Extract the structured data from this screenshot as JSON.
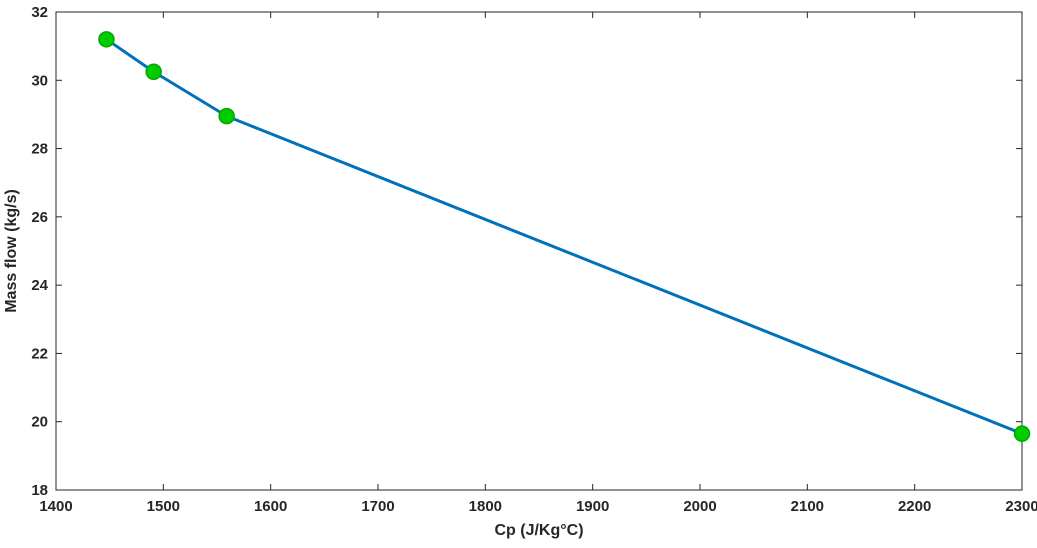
{
  "figure": {
    "background": "#ffffff"
  },
  "chart_data": {
    "type": "line",
    "title": "",
    "xlabel": "Cp (J/Kg°C)",
    "ylabel": "Mass flow (kg/s)",
    "x": [
      1447,
      1491,
      1559,
      2300
    ],
    "y": [
      31.2,
      30.25,
      28.95,
      19.65
    ],
    "xlim": [
      1400,
      2300
    ],
    "ylim": [
      18,
      32
    ],
    "xticks": [
      1400,
      1500,
      1600,
      1700,
      1800,
      1900,
      2000,
      2100,
      2200,
      2300
    ],
    "yticks": [
      18,
      20,
      22,
      24,
      26,
      28,
      30,
      32
    ],
    "grid": false,
    "box": true,
    "line_color": "#0072BD",
    "line_width": 3,
    "marker": "circle",
    "marker_color": "#00CC00",
    "marker_edge_color": "#00A800",
    "marker_radius": 7.5,
    "axis_color": "#262626"
  }
}
